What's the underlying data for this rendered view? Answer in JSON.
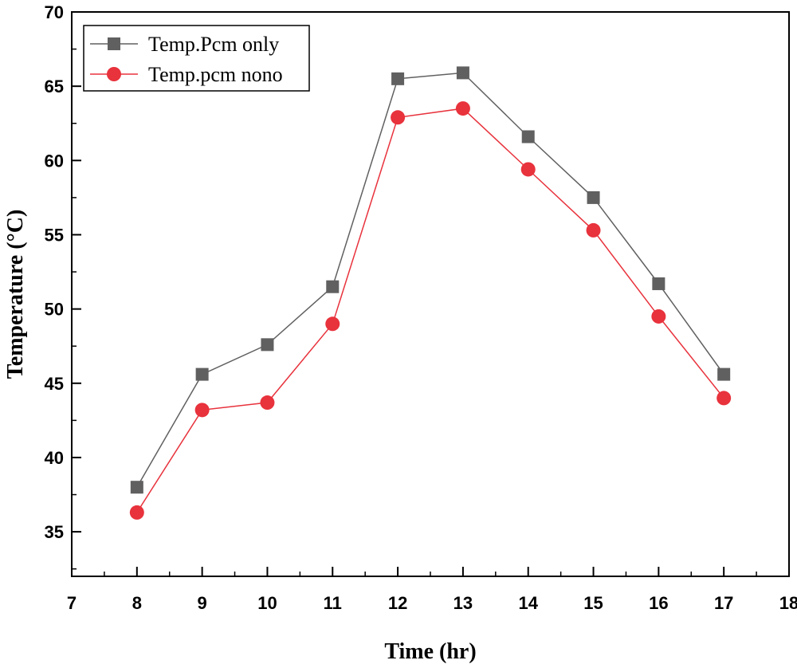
{
  "chart_data": {
    "type": "line",
    "xlabel": "Time (hr)",
    "ylabel": "Temperature (°C)",
    "xlim": [
      7,
      18
    ],
    "ylim": [
      32,
      70
    ],
    "x_ticks": [
      7,
      8,
      9,
      10,
      11,
      12,
      13,
      14,
      15,
      16,
      17,
      18
    ],
    "y_ticks": [
      35,
      40,
      45,
      50,
      55,
      60,
      65,
      70
    ],
    "legend_position": "top-left",
    "grid": false,
    "x": [
      8,
      9,
      10,
      11,
      12,
      13,
      14,
      15,
      16,
      17
    ],
    "series": [
      {
        "name": "Temp.Pcm only",
        "marker": "square",
        "color": "#606060",
        "values": [
          38.0,
          45.6,
          47.6,
          51.5,
          65.5,
          65.9,
          61.6,
          57.5,
          51.7,
          45.6
        ]
      },
      {
        "name": "Temp.pcm nono",
        "marker": "circle",
        "color": "#e8323c",
        "values": [
          36.3,
          43.2,
          43.7,
          49.0,
          62.9,
          63.5,
          59.4,
          55.3,
          49.5,
          44.0
        ]
      }
    ]
  }
}
